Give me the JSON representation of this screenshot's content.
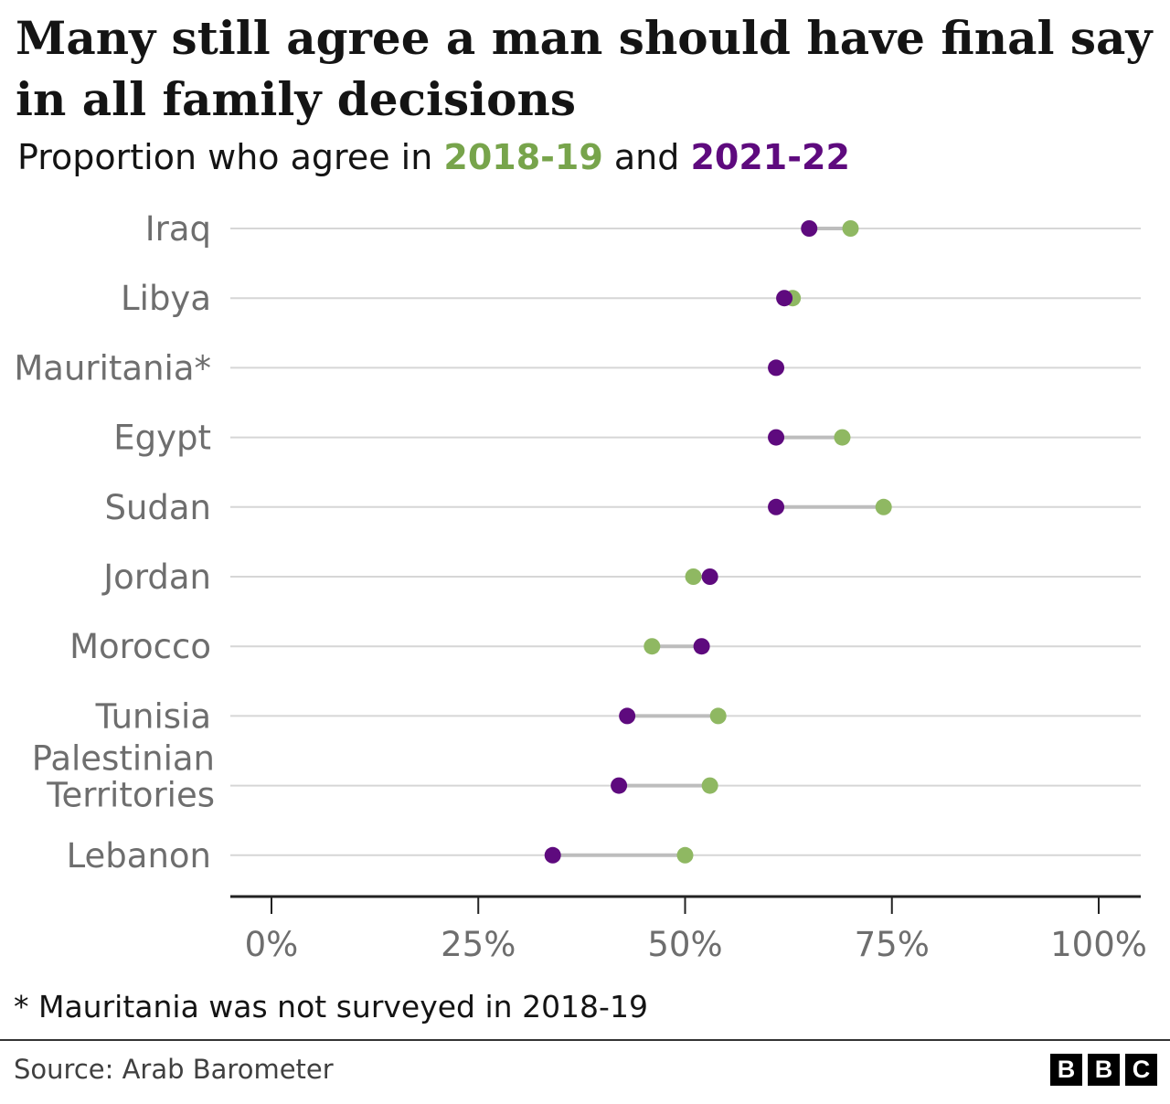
{
  "title": "Many still agree a man should have final say in all family decisions",
  "subtitle": {
    "prefix": "Proportion who agree in ",
    "year1": "2018-19",
    "mid": " and ",
    "year2": "2021-22"
  },
  "footnote": "* Mauritania was not surveyed in 2018-19",
  "source": "Source: Arab Barometer",
  "logo": [
    "B",
    "B",
    "C"
  ],
  "colors": {
    "y2018": "#8fb862",
    "y2021": "#5e0a7e",
    "connector": "#bdbdbd",
    "gridline": "#d6d6d6"
  },
  "chart_data": {
    "type": "dumbbell",
    "categories": [
      "Iraq",
      "Libya",
      "Mauritania*",
      "Egypt",
      "Sudan",
      "Jordan",
      "Morocco",
      "Tunisia",
      "Palestinian Territories",
      "Lebanon"
    ],
    "series": [
      {
        "name": "2018-19",
        "values": [
          70,
          63,
          null,
          69,
          74,
          51,
          46,
          54,
          53,
          50
        ]
      },
      {
        "name": "2021-22",
        "values": [
          65,
          62,
          61,
          61,
          61,
          53,
          52,
          43,
          42,
          34
        ]
      }
    ],
    "xlim": [
      0,
      100
    ],
    "xticks": [
      "0%",
      "25%",
      "50%",
      "75%",
      "100%"
    ],
    "xtick_values": [
      0,
      25,
      50,
      75,
      100
    ],
    "grid": true
  }
}
